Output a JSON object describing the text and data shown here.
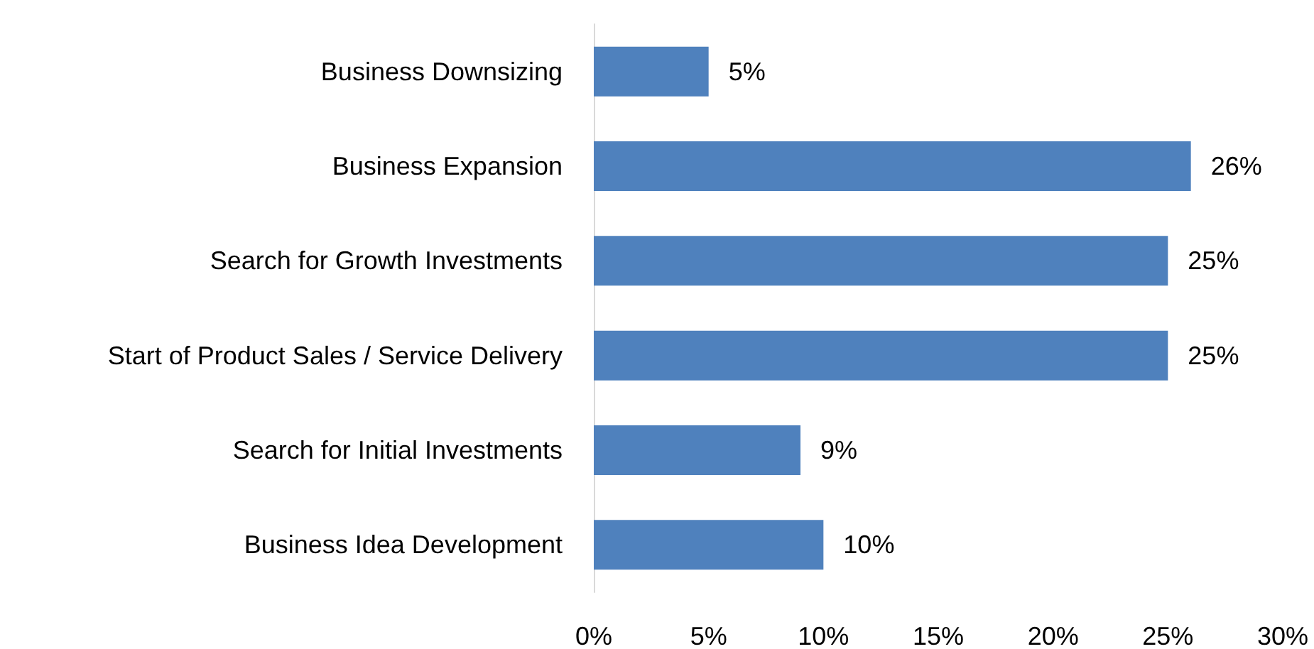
{
  "chart_data": {
    "type": "bar",
    "orientation": "horizontal",
    "categories": [
      "Business Downsizing",
      "Business Expansion",
      "Search for Growth Investments",
      "Start of Product Sales / Service Delivery",
      "Search for Initial Investments",
      "Business Idea Development"
    ],
    "values": [
      5,
      26,
      25,
      25,
      9,
      10
    ],
    "value_labels": [
      "5%",
      "26%",
      "25%",
      "25%",
      "9%",
      "10%"
    ],
    "color": "#4f81bd",
    "xlim": [
      0,
      30
    ],
    "xticks": [
      {
        "value": 0,
        "label": "0%"
      },
      {
        "value": 5,
        "label": "5%"
      },
      {
        "value": 10,
        "label": "10%"
      },
      {
        "value": 15,
        "label": "15%"
      },
      {
        "value": 20,
        "label": "20%"
      },
      {
        "value": 25,
        "label": "25%"
      },
      {
        "value": 30,
        "label": "30%"
      }
    ]
  }
}
